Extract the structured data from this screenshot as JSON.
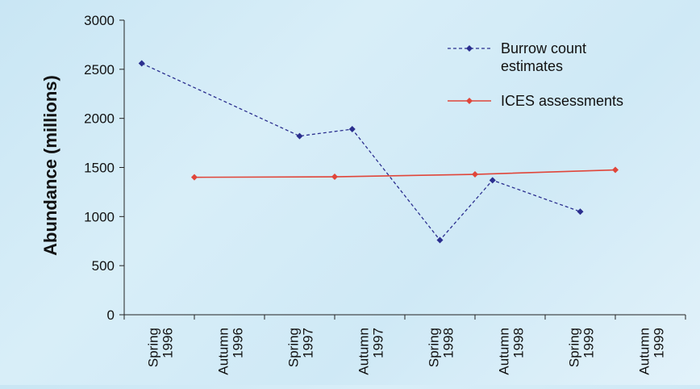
{
  "chart_data": {
    "type": "line",
    "title": "",
    "ylabel": "Abundance (millions)",
    "xlabel": "",
    "ylim": [
      0,
      3000
    ],
    "yticks": [
      0,
      500,
      1000,
      1500,
      2000,
      2500,
      3000
    ],
    "categories": [
      [
        "Spring",
        "1996"
      ],
      [
        "Autumn",
        "1996"
      ],
      [
        "Spring",
        "1997"
      ],
      [
        "Autumn",
        "1997"
      ],
      [
        "Spring",
        "1998"
      ],
      [
        "Autumn",
        "1998"
      ],
      [
        "Spring",
        "1999"
      ],
      [
        "Autumn",
        "1999"
      ]
    ],
    "legend_position": "top-right",
    "grid": false,
    "series": [
      {
        "name": "Burrow count estimates",
        "name_lines": [
          "Burrow count",
          "estimates"
        ],
        "color": "#2b2f8f",
        "style": "dashed",
        "points": [
          {
            "x": 0.25,
            "y": 2560
          },
          {
            "x": 2.5,
            "y": 1820
          },
          {
            "x": 3.25,
            "y": 1890
          },
          {
            "x": 4.5,
            "y": 760
          },
          {
            "x": 5.25,
            "y": 1370
          },
          {
            "x": 6.5,
            "y": 1050
          }
        ]
      },
      {
        "name": "ICES assessments",
        "name_lines": [
          "ICES assessments"
        ],
        "color": "#e0463a",
        "style": "solid",
        "points": [
          {
            "x": 1,
            "y": 1400
          },
          {
            "x": 3,
            "y": 1405
          },
          {
            "x": 5,
            "y": 1430
          },
          {
            "x": 7,
            "y": 1475
          }
        ]
      }
    ]
  }
}
